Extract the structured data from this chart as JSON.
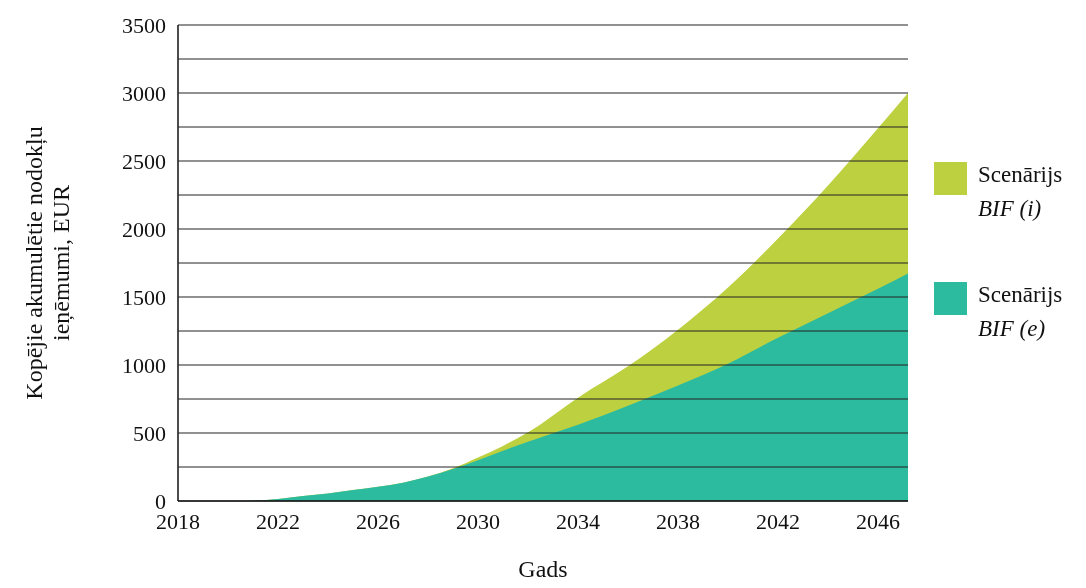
{
  "chart_data": {
    "type": "area",
    "xlabel": "Gads",
    "ylabel": "Kopējie akumulētie nodokļu ieņēmumi, EUR",
    "x": [
      2020.75,
      2022,
      2023,
      2024,
      2025,
      2026,
      2027,
      2028,
      2029,
      2030,
      2031,
      2032,
      2034,
      2036,
      2038,
      2040,
      2042,
      2044,
      2046,
      2047.2
    ],
    "series": [
      {
        "name": "Scenārijs BIF (i)",
        "color": "#bdd03f",
        "values": [
          0,
          15,
          37,
          55,
          80,
          105,
          135,
          180,
          240,
          320,
          405,
          505,
          760,
          990,
          1260,
          1570,
          1930,
          2320,
          2740,
          3000
        ]
      },
      {
        "name": "Scenārijs BIF (e)",
        "color": "#2dbb9f",
        "values": [
          0,
          15,
          37,
          55,
          80,
          105,
          135,
          180,
          235,
          300,
          370,
          435,
          560,
          700,
          850,
          1010,
          1200,
          1380,
          1560,
          1672
        ]
      }
    ],
    "xlim": [
      2018,
      2047.2
    ],
    "xticks": [
      2018,
      2022,
      2026,
      2030,
      2034,
      2038,
      2042,
      2046
    ],
    "ylim": [
      0,
      3500
    ],
    "yticks": [
      0,
      {
        "value": 250,
        "label": null
      },
      500,
      {
        "value": 750,
        "label": null
      },
      1000,
      {
        "value": 1250,
        "label": null
      },
      1500,
      {
        "value": 1750,
        "label": null
      },
      2000,
      {
        "value": 2250,
        "label": null
      },
      2500,
      {
        "value": 2750,
        "label": null
      },
      3000,
      {
        "value": 3250,
        "label": null
      },
      3500
    ],
    "grid": "y",
    "legend": "right"
  }
}
